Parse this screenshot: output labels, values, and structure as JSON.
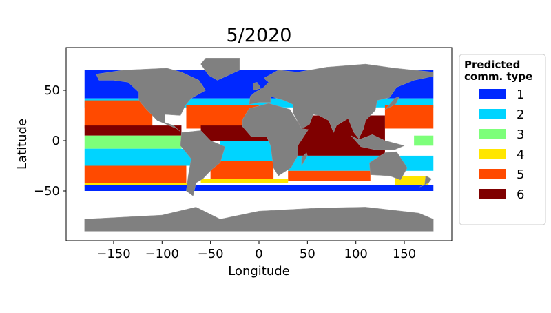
{
  "chart_data": {
    "type": "map",
    "title": "5/2020",
    "xlabel": "Longitude",
    "ylabel": "Latitude",
    "xlim": [
      -199,
      199
    ],
    "ylim": [
      -99,
      92
    ],
    "xticks": [
      -150,
      -100,
      -50,
      0,
      50,
      100,
      150
    ],
    "xtick_labels": [
      "−150",
      "−100",
      "−50",
      "0",
      "50",
      "100",
      "150"
    ],
    "yticks": [
      50,
      0,
      -50
    ],
    "ytick_labels": [
      "50",
      "0",
      "−50"
    ],
    "grid": false,
    "land_color": "#808080",
    "legend": {
      "title": "Predicted\ncomm. type",
      "title_lines": [
        "Predicted",
        "comm. type"
      ],
      "placement": "right",
      "entries": [
        {
          "label": "1",
          "color": "#0028ff"
        },
        {
          "label": "2",
          "color": "#00d4ff"
        },
        {
          "label": "3",
          "color": "#7dff7a"
        },
        {
          "label": "4",
          "color": "#ffe600"
        },
        {
          "label": "5",
          "color": "#ff4a00"
        },
        {
          "label": "6",
          "color": "#7f0000"
        }
      ]
    },
    "regions": [
      {
        "type": 1,
        "lon": [
          -180,
          180
        ],
        "lat": [
          42,
          70
        ]
      },
      {
        "type": 2,
        "lon": [
          -180,
          180
        ],
        "lat": [
          33,
          42
        ]
      },
      {
        "type": 5,
        "lon": [
          -180,
          -110
        ],
        "lat": [
          12,
          40
        ]
      },
      {
        "type": 5,
        "lon": [
          -75,
          0
        ],
        "lat": [
          12,
          35
        ]
      },
      {
        "type": 5,
        "lon": [
          130,
          180
        ],
        "lat": [
          12,
          35
        ]
      },
      {
        "type": 6,
        "lon": [
          -180,
          -80
        ],
        "lat": [
          5,
          15
        ]
      },
      {
        "type": 6,
        "lon": [
          -60,
          20
        ],
        "lat": [
          0,
          15
        ]
      },
      {
        "type": 6,
        "lon": [
          40,
          130
        ],
        "lat": [
          -15,
          25
        ]
      },
      {
        "type": 3,
        "lon": [
          -180,
          -80
        ],
        "lat": [
          -8,
          5
        ]
      },
      {
        "type": 3,
        "lon": [
          160,
          180
        ],
        "lat": [
          -5,
          5
        ]
      },
      {
        "type": 2,
        "lon": [
          -180,
          -70
        ],
        "lat": [
          -25,
          -8
        ]
      },
      {
        "type": 2,
        "lon": [
          -40,
          15
        ],
        "lat": [
          -20,
          0
        ]
      },
      {
        "type": 2,
        "lon": [
          30,
          180
        ],
        "lat": [
          -30,
          -15
        ]
      },
      {
        "type": 5,
        "lon": [
          -180,
          -75
        ],
        "lat": [
          -42,
          -25
        ]
      },
      {
        "type": 5,
        "lon": [
          -50,
          15
        ],
        "lat": [
          -40,
          -20
        ]
      },
      {
        "type": 5,
        "lon": [
          30,
          115
        ],
        "lat": [
          -40,
          -30
        ]
      },
      {
        "type": 4,
        "lon": [
          -180,
          -70
        ],
        "lat": [
          -46,
          -42
        ]
      },
      {
        "type": 4,
        "lon": [
          -60,
          30
        ],
        "lat": [
          -42,
          -38
        ]
      },
      {
        "type": 4,
        "lon": [
          140,
          175
        ],
        "lat": [
          -45,
          -35
        ]
      },
      {
        "type": 1,
        "lon": [
          -180,
          180
        ],
        "lat": [
          -50,
          -44
        ]
      }
    ]
  }
}
